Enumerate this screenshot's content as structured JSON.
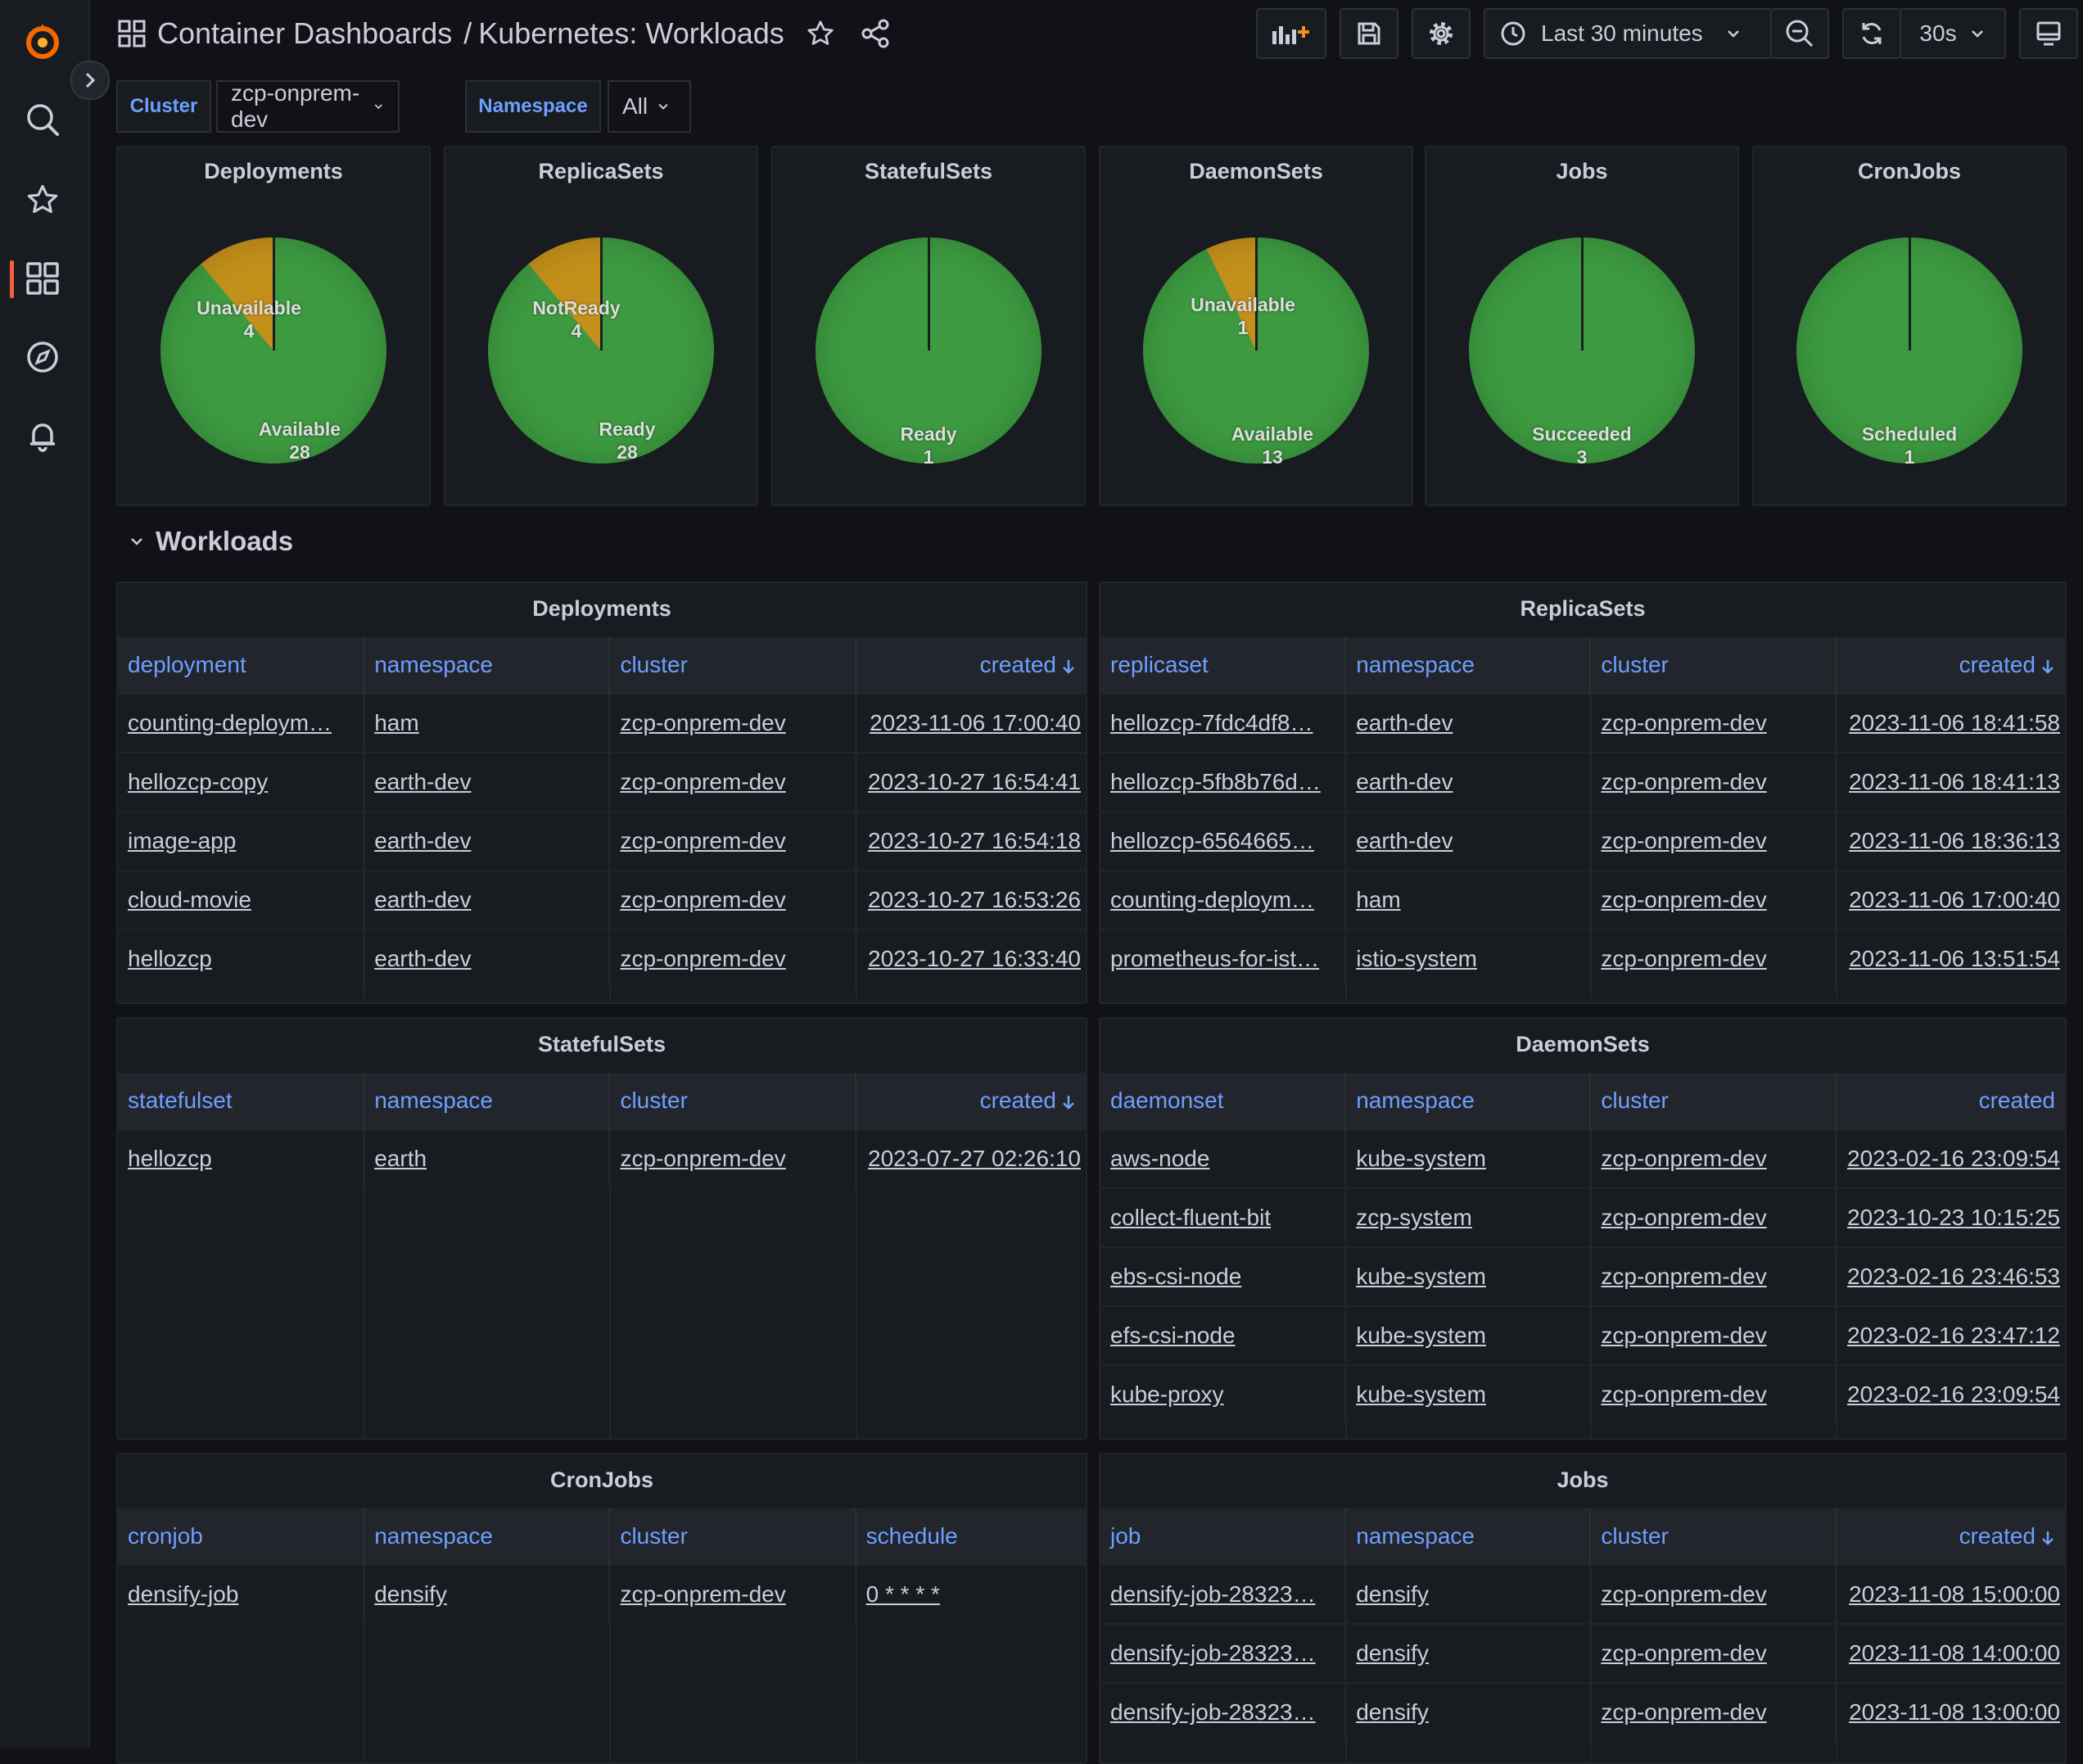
{
  "breadcrumb": {
    "folder": "Container Dashboards",
    "separator": "/",
    "title": "Kubernetes: Workloads"
  },
  "toolbar": {
    "time_range": "Last 30 minutes",
    "refresh_interval": "30s"
  },
  "variables": [
    {
      "label": "Cluster",
      "value": "zcp-onprem-dev"
    },
    {
      "label": "Namespace",
      "value": "All"
    }
  ],
  "colors": {
    "ok": "#3d9a40",
    "warn": "#c3901b",
    "accent": "#6e9fff",
    "brand": "#f55f3e"
  },
  "stat_panels": [
    {
      "title": "Deployments",
      "slices": [
        {
          "label": "Unavailable",
          "value": "4"
        },
        {
          "label": "Available",
          "value": "28"
        }
      ]
    },
    {
      "title": "ReplicaSets",
      "slices": [
        {
          "label": "NotReady",
          "value": "4"
        },
        {
          "label": "Ready",
          "value": "28"
        }
      ]
    },
    {
      "title": "StatefulSets",
      "slices": [
        {
          "label": "Ready",
          "value": "1"
        }
      ]
    },
    {
      "title": "DaemonSets",
      "slices": [
        {
          "label": "Unavailable",
          "value": "1"
        },
        {
          "label": "Available",
          "value": "13"
        }
      ]
    },
    {
      "title": "Jobs",
      "slices": [
        {
          "label": "Succeeded",
          "value": "3"
        }
      ]
    },
    {
      "title": "CronJobs",
      "slices": [
        {
          "label": "Scheduled",
          "value": "1"
        }
      ]
    }
  ],
  "row_title": "Workloads",
  "tables": {
    "deployments": {
      "title": "Deployments",
      "headers": [
        "deployment",
        "namespace",
        "cluster",
        "created"
      ],
      "rows": [
        [
          "counting-deploym…",
          "ham",
          "zcp-onprem-dev",
          "2023-11-06 17:00:40"
        ],
        [
          "hellozcp-copy",
          "earth-dev",
          "zcp-onprem-dev",
          "2023-10-27 16:54:41"
        ],
        [
          "image-app",
          "earth-dev",
          "zcp-onprem-dev",
          "2023-10-27 16:54:18"
        ],
        [
          "cloud-movie",
          "earth-dev",
          "zcp-onprem-dev",
          "2023-10-27 16:53:26"
        ],
        [
          "hellozcp",
          "earth-dev",
          "zcp-onprem-dev",
          "2023-10-27 16:33:40"
        ]
      ]
    },
    "replicasets": {
      "title": "ReplicaSets",
      "headers": [
        "replicaset",
        "namespace",
        "cluster",
        "created"
      ],
      "rows": [
        [
          "hellozcp-7fdc4df8…",
          "earth-dev",
          "zcp-onprem-dev",
          "2023-11-06 18:41:58"
        ],
        [
          "hellozcp-5fb8b76d…",
          "earth-dev",
          "zcp-onprem-dev",
          "2023-11-06 18:41:13"
        ],
        [
          "hellozcp-6564665…",
          "earth-dev",
          "zcp-onprem-dev",
          "2023-11-06 18:36:13"
        ],
        [
          "counting-deploym…",
          "ham",
          "zcp-onprem-dev",
          "2023-11-06 17:00:40"
        ],
        [
          "prometheus-for-ist…",
          "istio-system",
          "zcp-onprem-dev",
          "2023-11-06 13:51:54"
        ]
      ]
    },
    "statefulsets": {
      "title": "StatefulSets",
      "headers": [
        "statefulset",
        "namespace",
        "cluster",
        "created"
      ],
      "rows": [
        [
          "hellozcp",
          "earth",
          "zcp-onprem-dev",
          "2023-07-27 02:26:10"
        ]
      ]
    },
    "daemonsets": {
      "title": "DaemonSets",
      "headers": [
        "daemonset",
        "namespace",
        "cluster",
        "created"
      ],
      "rows": [
        [
          "aws-node",
          "kube-system",
          "zcp-onprem-dev",
          "2023-02-16 23:09:54"
        ],
        [
          "collect-fluent-bit",
          "zcp-system",
          "zcp-onprem-dev",
          "2023-10-23 10:15:25"
        ],
        [
          "ebs-csi-node",
          "kube-system",
          "zcp-onprem-dev",
          "2023-02-16 23:46:53"
        ],
        [
          "efs-csi-node",
          "kube-system",
          "zcp-onprem-dev",
          "2023-02-16 23:47:12"
        ],
        [
          "kube-proxy",
          "kube-system",
          "zcp-onprem-dev",
          "2023-02-16 23:09:54"
        ]
      ]
    },
    "cronjobs": {
      "title": "CronJobs",
      "headers": [
        "cronjob",
        "namespace",
        "cluster",
        "schedule"
      ],
      "rows": [
        [
          "densify-job",
          "densify",
          "zcp-onprem-dev",
          "0 * * * *"
        ]
      ]
    },
    "jobs": {
      "title": "Jobs",
      "headers": [
        "job",
        "namespace",
        "cluster",
        "created"
      ],
      "rows": [
        [
          "densify-job-28323…",
          "densify",
          "zcp-onprem-dev",
          "2023-11-08 15:00:00"
        ],
        [
          "densify-job-28323…",
          "densify",
          "zcp-onprem-dev",
          "2023-11-08 14:00:00"
        ],
        [
          "densify-job-28323…",
          "densify",
          "zcp-onprem-dev",
          "2023-11-08 13:00:00"
        ]
      ]
    }
  }
}
